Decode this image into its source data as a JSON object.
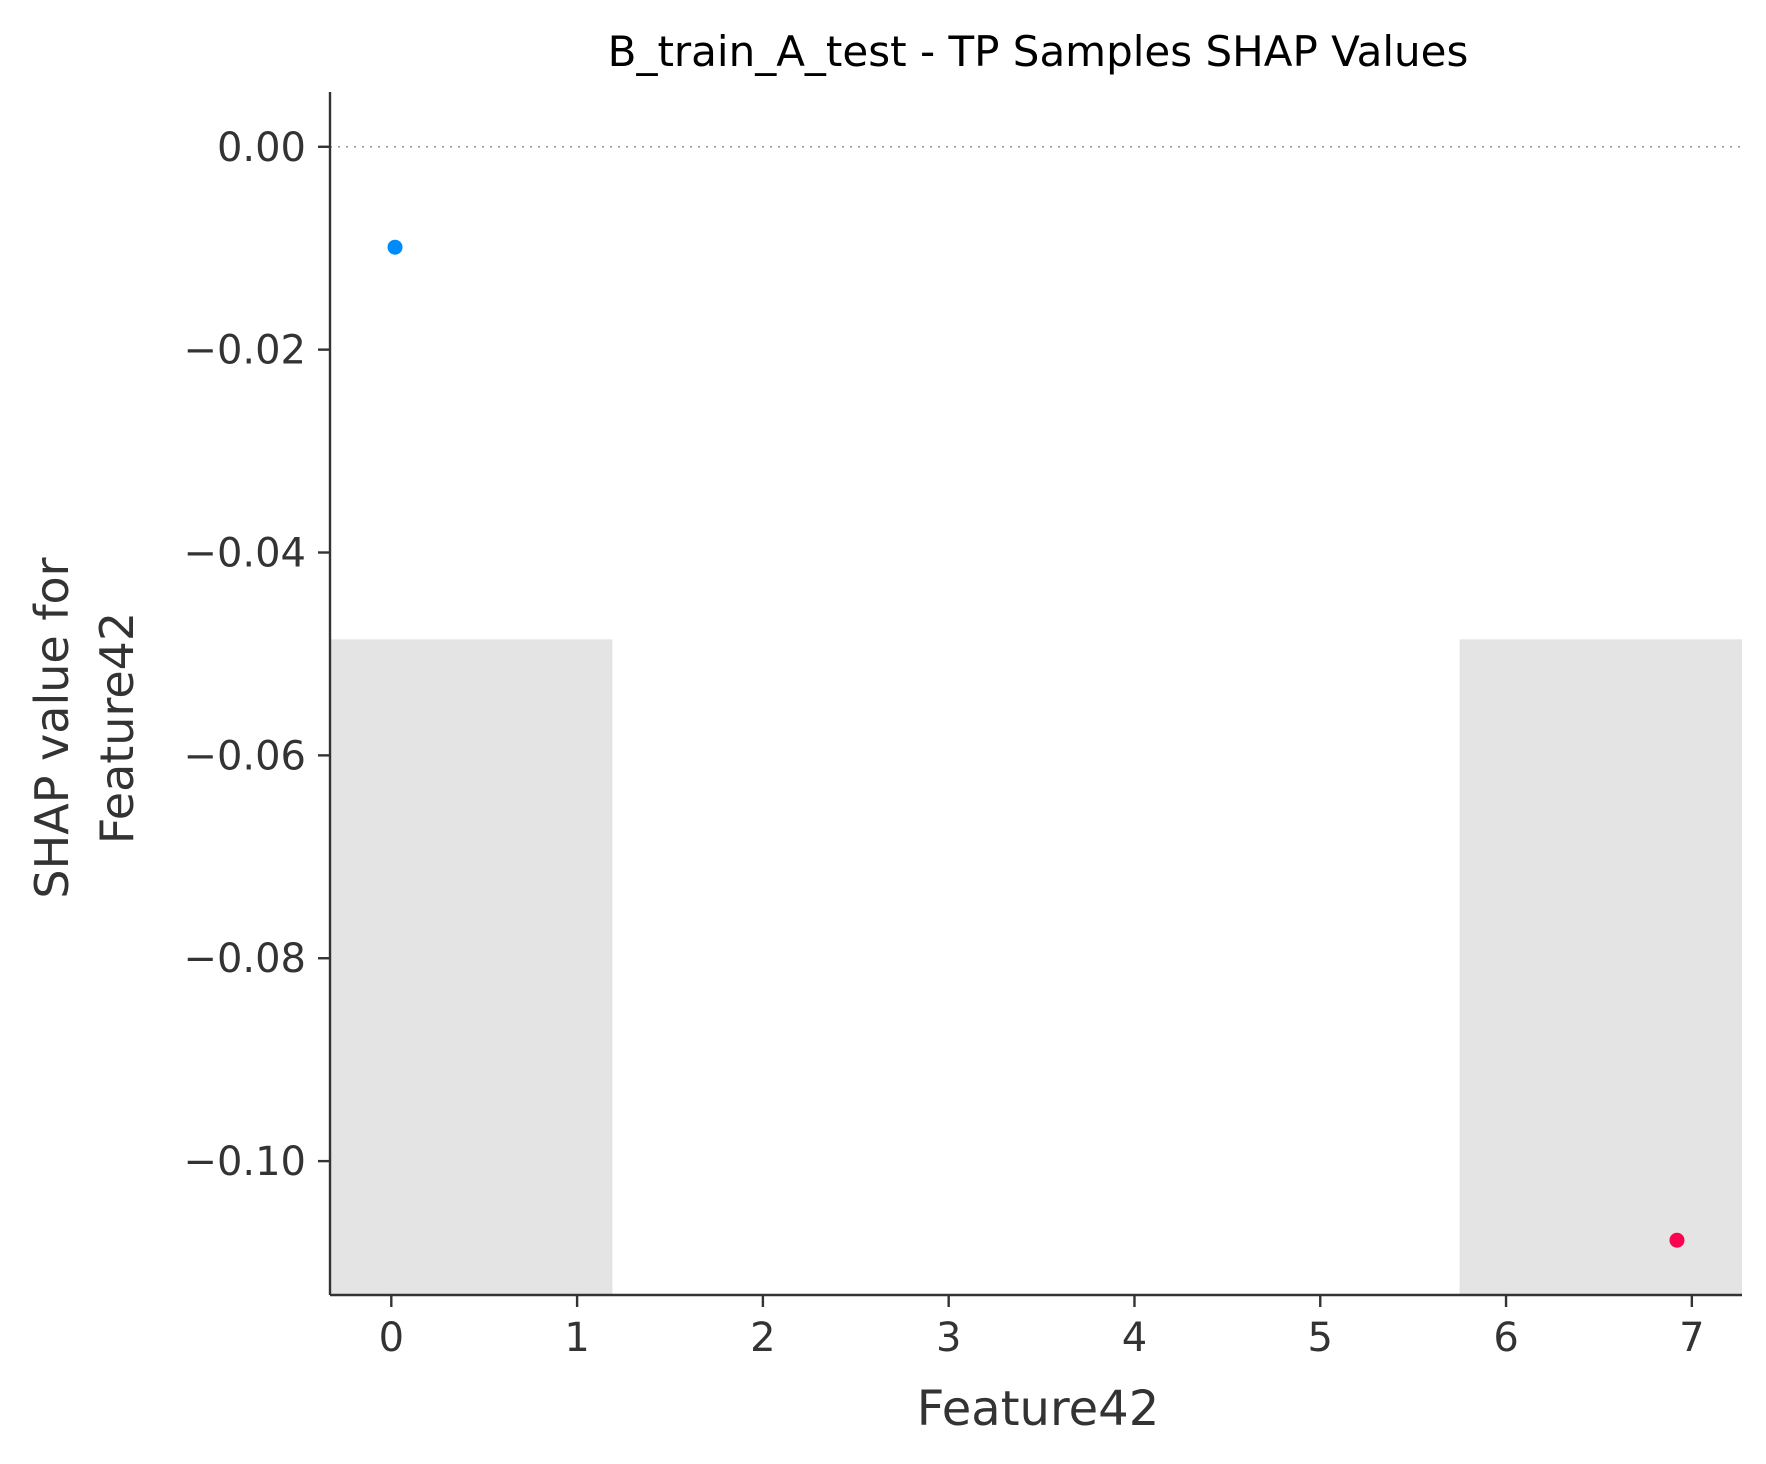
{
  "chart_data": {
    "type": "scatter",
    "title": "B_train_A_test - TP Samples SHAP Values",
    "xlabel": "Feature42",
    "ylabel_lines": [
      "SHAP value for",
      "Feature42"
    ],
    "xlim": [
      -0.33,
      7.27
    ],
    "ylim": [
      -0.1132,
      0.0054
    ],
    "xticks": [
      0,
      1,
      2,
      3,
      4,
      5,
      6,
      7
    ],
    "yticks": [
      0.0,
      -0.02,
      -0.04,
      -0.06,
      -0.08,
      -0.1
    ],
    "ytick_labels": [
      "0.00",
      "−0.02",
      "−0.04",
      "−0.06",
      "−0.08",
      "−0.10"
    ],
    "reference_line_y": 0.0,
    "histogram": {
      "bars": [
        {
          "x_start": -0.33,
          "x_end": 1.19,
          "count": 1
        },
        {
          "x_start": 5.75,
          "x_end": 7.27,
          "count": 1
        }
      ],
      "color": "#e4e4e4"
    },
    "points": [
      {
        "x": 0.02,
        "y": -0.0099,
        "color": "#008bfb"
      },
      {
        "x": 6.92,
        "y": -0.1078,
        "color": "#ff0051"
      }
    ],
    "grid": false
  },
  "colors": {
    "axis": "#333333",
    "text": "#333333",
    "title": "#000000",
    "reference_line": "#999999",
    "low_value": "#008bfb",
    "high_value": "#ff0051"
  }
}
